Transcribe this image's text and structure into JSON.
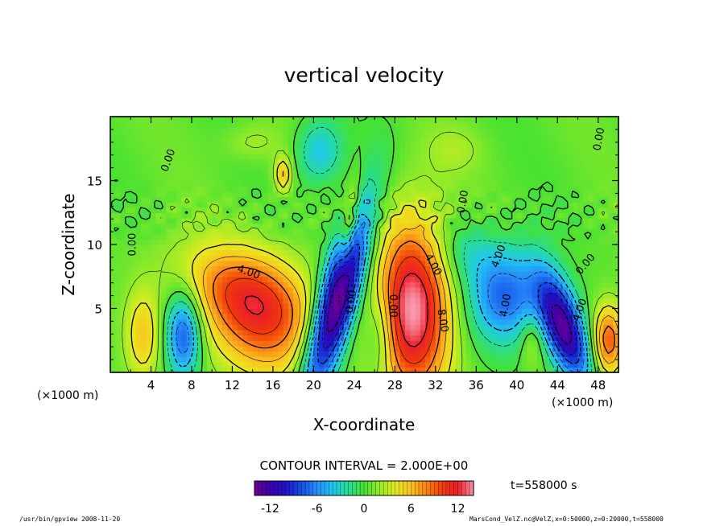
{
  "chart_data": {
    "type": "heatmap",
    "title": "vertical velocity",
    "xlabel": "X-coordinate",
    "ylabel": "Z-coordinate",
    "x_unit_label": "(×1000 m)",
    "z_unit_label": "(×1000 m)",
    "xlim": [
      0,
      50
    ],
    "ylim": [
      0,
      20
    ],
    "x_ticks": [
      4,
      8,
      12,
      16,
      20,
      24,
      28,
      32,
      36,
      40,
      44,
      48
    ],
    "y_ticks": [
      5,
      10,
      15
    ],
    "contour_interval_label": "CONTOUR INTERVAL = 2.000E+00",
    "contour_labels": [
      {
        "text": "4.00",
        "x": 13.5,
        "z": 7.6,
        "angle": 20
      },
      {
        "text": "0.00",
        "x": 6.0,
        "z": 16.5,
        "angle": -70
      },
      {
        "text": "0.00",
        "x": 2.5,
        "z": 10.0,
        "angle": -90
      },
      {
        "text": "4.00",
        "x": 31.5,
        "z": 8.3,
        "angle": 60
      },
      {
        "text": "8.00",
        "x": 32.4,
        "z": 4.0,
        "angle": 80
      },
      {
        "text": "0.00",
        "x": 27.5,
        "z": 5.2,
        "angle": 90
      },
      {
        "text": "4.00",
        "x": 38.5,
        "z": 9.0,
        "angle": -70
      },
      {
        "text": "4.00",
        "x": 39.2,
        "z": 5.2,
        "angle": -80
      },
      {
        "text": "4.00",
        "x": 46.5,
        "z": 4.8,
        "angle": -70
      },
      {
        "text": "0.00",
        "x": 47.0,
        "z": 8.3,
        "angle": -50
      },
      {
        "text": "0.00",
        "x": 48.4,
        "z": 18.2,
        "angle": -80
      },
      {
        "text": "0.00",
        "x": 35.0,
        "z": 13.3,
        "angle": -80
      },
      {
        "text": "0.00",
        "x": 24.0,
        "z": 5.5,
        "angle": -80
      }
    ],
    "colorbar": {
      "ticks": [
        -12,
        -6,
        0,
        6,
        12
      ],
      "range": [
        -14,
        14
      ]
    },
    "time_label": "t=558000 s",
    "features": [
      {
        "kind": "up",
        "x": 14.8,
        "z": 4.2,
        "rx": 4.0,
        "rz": 3.2,
        "amp": 8.5,
        "angle": -20
      },
      {
        "kind": "up",
        "x": 12.0,
        "z": 6.8,
        "rx": 4.5,
        "rz": 2.2,
        "amp": 4.5,
        "angle": -15
      },
      {
        "kind": "up",
        "x": 29.8,
        "z": 5.0,
        "rx": 2.6,
        "rz": 5.0,
        "amp": 13.5,
        "angle": 0
      },
      {
        "kind": "up",
        "x": 3.2,
        "z": 3.0,
        "rx": 1.2,
        "rz": 2.5,
        "amp": 5.0,
        "angle": 0
      },
      {
        "kind": "up",
        "x": 49.0,
        "z": 2.5,
        "rx": 1.1,
        "rz": 2.0,
        "amp": 9.0,
        "angle": 0
      },
      {
        "kind": "up",
        "x": 17.0,
        "z": 15.5,
        "rx": 0.6,
        "rz": 1.0,
        "amp": 6.0,
        "angle": 0
      },
      {
        "kind": "up",
        "x": 23.5,
        "z": 11.5,
        "rx": 0.5,
        "rz": 2.5,
        "amp": 6.0,
        "angle": -10
      },
      {
        "kind": "up",
        "x": 41.5,
        "z": 2.5,
        "rx": 0.8,
        "rz": 1.5,
        "amp": 3.0,
        "angle": 0
      },
      {
        "kind": "up",
        "x": 14.0,
        "z": 18.0,
        "rx": 2.0,
        "rz": 1.0,
        "amp": 2.0,
        "angle": 0
      },
      {
        "kind": "up",
        "x": 34.0,
        "z": 17.5,
        "rx": 2.0,
        "rz": 1.2,
        "amp": 1.5,
        "angle": 0
      },
      {
        "kind": "down",
        "x": 22.3,
        "z": 5.5,
        "rx": 1.3,
        "rz": 5.5,
        "amp": -16.5,
        "angle": -20
      },
      {
        "kind": "down",
        "x": 7.2,
        "z": 3.0,
        "rx": 1.2,
        "rz": 2.4,
        "amp": -9.0,
        "angle": 0
      },
      {
        "kind": "down",
        "x": 44.6,
        "z": 3.5,
        "rx": 1.3,
        "rz": 3.2,
        "amp": -14.0,
        "angle": 25
      },
      {
        "kind": "down",
        "x": 38.8,
        "z": 6.0,
        "rx": 2.6,
        "rz": 2.6,
        "amp": -8.0,
        "angle": 0
      },
      {
        "kind": "down",
        "x": 20.6,
        "z": 17.3,
        "rx": 1.6,
        "rz": 1.8,
        "amp": -5.0,
        "angle": 0
      },
      {
        "kind": "down",
        "x": 34.6,
        "z": 9.5,
        "rx": 2.2,
        "rz": 1.8,
        "amp": -3.0,
        "angle": 0
      },
      {
        "kind": "down",
        "x": 26.5,
        "z": 3.0,
        "rx": 1.0,
        "rz": 2.5,
        "amp": -4.0,
        "angle": 0
      }
    ]
  },
  "footer": {
    "left": "/usr/bin/gpview  2008-11-20",
    "right": "MarsCond_VelZ.nc@VelZ,x=0:50000,z=0:20000,t=558000"
  }
}
